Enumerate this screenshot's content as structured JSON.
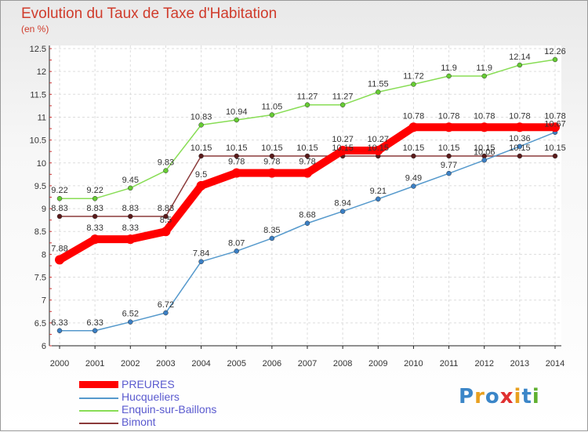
{
  "chart_data": {
    "type": "line",
    "title": "Evolution du Taux de Taxe d'Habitation",
    "subtitle": "(en %)",
    "x": [
      "2000",
      "2001",
      "2002",
      "2003",
      "2004",
      "2005",
      "2006",
      "2007",
      "2008",
      "2009",
      "2010",
      "2011",
      "2012",
      "2013",
      "2014"
    ],
    "ylim": [
      6,
      12.5
    ],
    "yticks": [
      "6",
      "6.5",
      "7",
      "7.5",
      "8",
      "8.5",
      "9",
      "9.5",
      "10",
      "10.5",
      "11",
      "11.5",
      "12",
      "12.5"
    ],
    "grid": true,
    "legend_position": "bottom-left",
    "series": [
      {
        "name": "PREURES",
        "color": "#ff0000",
        "values": [
          7.88,
          8.33,
          8.33,
          8.5,
          9.5,
          9.78,
          9.78,
          9.78,
          10.27,
          10.27,
          10.78,
          10.78,
          10.78,
          10.78,
          10.78
        ],
        "labels": [
          "7.88",
          "8.33",
          "8.33",
          "8.5",
          "9.5",
          "9.78",
          "9.78",
          "9.78",
          "10.27",
          "10.27",
          "10.78",
          "10.78",
          "10.78",
          "10.78",
          "10.78"
        ]
      },
      {
        "name": "Hucqueliers",
        "color": "#5599cc",
        "values": [
          6.33,
          6.33,
          6.52,
          6.72,
          7.84,
          8.07,
          8.35,
          8.68,
          8.94,
          9.21,
          9.49,
          9.77,
          10.06,
          10.36,
          10.67
        ],
        "labels": [
          "6.33",
          "6.33",
          "6.52",
          "6.72",
          "7.84",
          "8.07",
          "8.35",
          "8.68",
          "8.94",
          "9.21",
          "9.49",
          "9.77",
          "10.06",
          "10.36",
          "10.67"
        ]
      },
      {
        "name": "Enquin-sur-Baillons",
        "color": "#88dd55",
        "values": [
          9.22,
          9.22,
          9.45,
          9.83,
          10.83,
          10.94,
          11.05,
          11.27,
          11.27,
          11.55,
          11.72,
          11.9,
          11.9,
          12.14,
          12.26
        ],
        "labels": [
          "9.22",
          "9.22",
          "9.45",
          "9.83",
          "10.83",
          "10.94",
          "11.05",
          "11.27",
          "11.27",
          "11.55",
          "11.72",
          "11.9",
          "11.9",
          "12.14",
          "12.26"
        ]
      },
      {
        "name": "Bimont",
        "color": "#8b3a3a",
        "values": [
          8.83,
          8.83,
          8.83,
          8.83,
          10.15,
          10.15,
          10.15,
          10.15,
          10.15,
          10.15,
          10.15,
          10.15,
          10.15,
          10.15,
          10.15
        ],
        "labels": [
          "8.83",
          "8.83",
          "8.83",
          "8.83",
          "10.15",
          "10.15",
          "10.15",
          "10.15",
          "10.15",
          "10.15",
          "10.15",
          "10.15",
          "10.15",
          "10.15",
          "10.15"
        ]
      }
    ]
  },
  "logo": {
    "letters": [
      "P",
      "r",
      "o",
      "x",
      "i",
      "t",
      "i"
    ],
    "colors": [
      "#3b86c8",
      "#e8a020",
      "#3b86c8",
      "#e03030",
      "#e8a020",
      "#3b86c8",
      "#60b030"
    ]
  }
}
